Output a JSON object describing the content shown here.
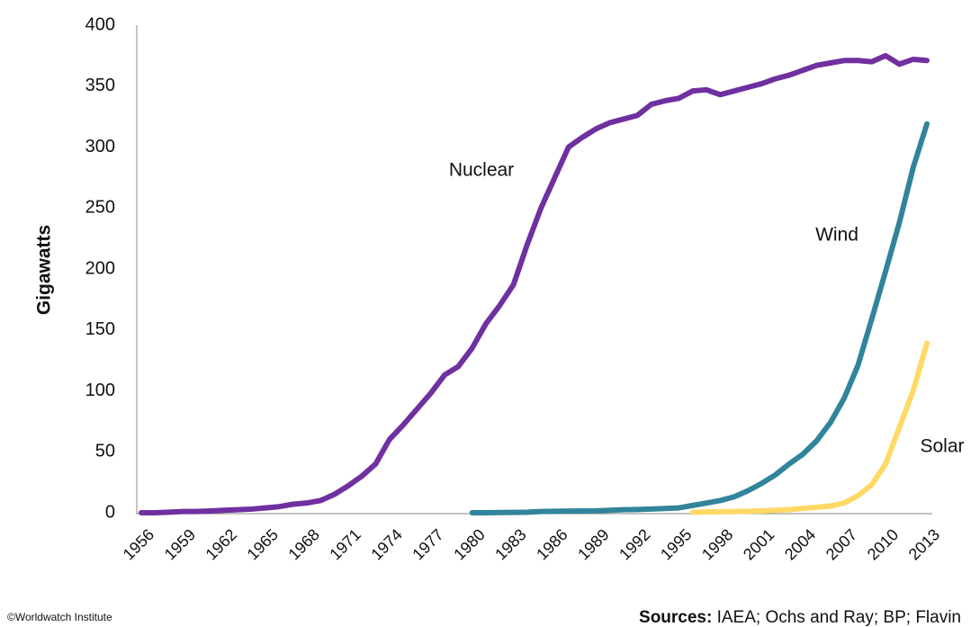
{
  "chart_data": {
    "type": "line",
    "y_label": "Gigawatts",
    "footer_left": "©Worldwatch Institute",
    "source_label": "Sources:",
    "source_text": "IAEA; Ochs and Ray; BP; Flavin",
    "x": [
      1956,
      1957,
      1958,
      1959,
      1960,
      1961,
      1962,
      1963,
      1964,
      1965,
      1966,
      1967,
      1968,
      1969,
      1970,
      1971,
      1972,
      1973,
      1974,
      1975,
      1976,
      1977,
      1978,
      1979,
      1980,
      1981,
      1982,
      1983,
      1984,
      1985,
      1986,
      1987,
      1988,
      1989,
      1990,
      1991,
      1992,
      1993,
      1994,
      1995,
      1996,
      1997,
      1998,
      1999,
      2000,
      2001,
      2002,
      2003,
      2004,
      2005,
      2006,
      2007,
      2008,
      2009,
      2010,
      2011,
      2012,
      2013
    ],
    "xlim": [
      1956,
      2013
    ],
    "xticks": [
      1956,
      1959,
      1962,
      1965,
      1968,
      1971,
      1974,
      1977,
      1980,
      1983,
      1986,
      1989,
      1992,
      1995,
      1998,
      2001,
      2004,
      2007,
      2010,
      2013
    ],
    "ylim": [
      0,
      400
    ],
    "yticks": [
      0,
      50,
      100,
      150,
      200,
      250,
      300,
      350,
      400
    ],
    "grid": false,
    "series": [
      {
        "name": "Nuclear",
        "color": "#7030a0",
        "values": [
          0,
          0,
          0.5,
          1,
          1,
          1.5,
          2,
          2.5,
          3,
          4,
          5,
          7,
          8,
          10,
          15,
          22,
          30,
          40,
          60,
          72,
          85,
          98,
          113,
          120,
          135,
          155,
          170,
          187,
          220,
          250,
          275,
          300,
          308,
          315,
          320,
          323,
          326,
          335,
          338,
          340,
          346,
          347,
          343,
          346,
          349,
          352,
          356,
          359,
          363,
          367,
          369,
          371,
          371,
          370,
          375,
          368,
          372,
          371
        ]
      },
      {
        "name": "Wind",
        "color": "#31849b",
        "values": [
          null,
          null,
          null,
          null,
          null,
          null,
          null,
          null,
          null,
          null,
          null,
          null,
          null,
          null,
          null,
          null,
          null,
          null,
          null,
          null,
          null,
          null,
          null,
          null,
          0,
          0,
          0.2,
          0.3,
          0.5,
          1,
          1.2,
          1.4,
          1.5,
          1.6,
          2,
          2.5,
          2.7,
          3,
          3.5,
          4,
          6,
          8,
          10,
          13,
          18,
          24,
          31,
          40,
          48,
          59,
          74,
          94,
          121,
          159,
          198,
          238,
          283,
          319
        ]
      },
      {
        "name": "Solar",
        "color": "#ffd966",
        "values": [
          null,
          null,
          null,
          null,
          null,
          null,
          null,
          null,
          null,
          null,
          null,
          null,
          null,
          null,
          null,
          null,
          null,
          null,
          null,
          null,
          null,
          null,
          null,
          null,
          null,
          null,
          null,
          null,
          null,
          null,
          null,
          null,
          null,
          null,
          null,
          null,
          null,
          null,
          null,
          null,
          0.5,
          0.6,
          0.8,
          1,
          1.2,
          1.5,
          2,
          2.5,
          3.5,
          4.5,
          5.5,
          8,
          14,
          23,
          40,
          70,
          100,
          139
        ]
      }
    ]
  }
}
